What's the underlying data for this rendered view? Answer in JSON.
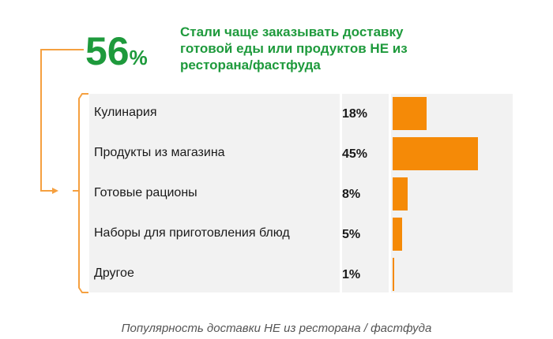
{
  "headline": {
    "percent_number": "56",
    "percent_sign": "%",
    "text_lines": [
      "Стали чаще заказывать доставку",
      "готовой еды или продуктов НЕ из",
      "ресторана/фастфуда"
    ]
  },
  "chart_data": {
    "type": "bar",
    "orientation": "horizontal",
    "categories": [
      "Кулинария",
      "Продукты из магазина",
      "Готовые рационы",
      "Наборы для приготовления блюд",
      "Другое"
    ],
    "values": [
      18,
      45,
      8,
      5,
      1
    ],
    "value_labels": [
      "18%",
      "45%",
      "8%",
      "5%",
      "1%"
    ],
    "unit": "%",
    "grid": false,
    "legend": "none",
    "colors": {
      "bar": "#f58a07",
      "headline": "#1e9a3c",
      "connector": "#f5a040",
      "row_background": "#f2f2f2"
    }
  },
  "caption": "Популярность доставки НЕ из ресторана / фастфуда"
}
